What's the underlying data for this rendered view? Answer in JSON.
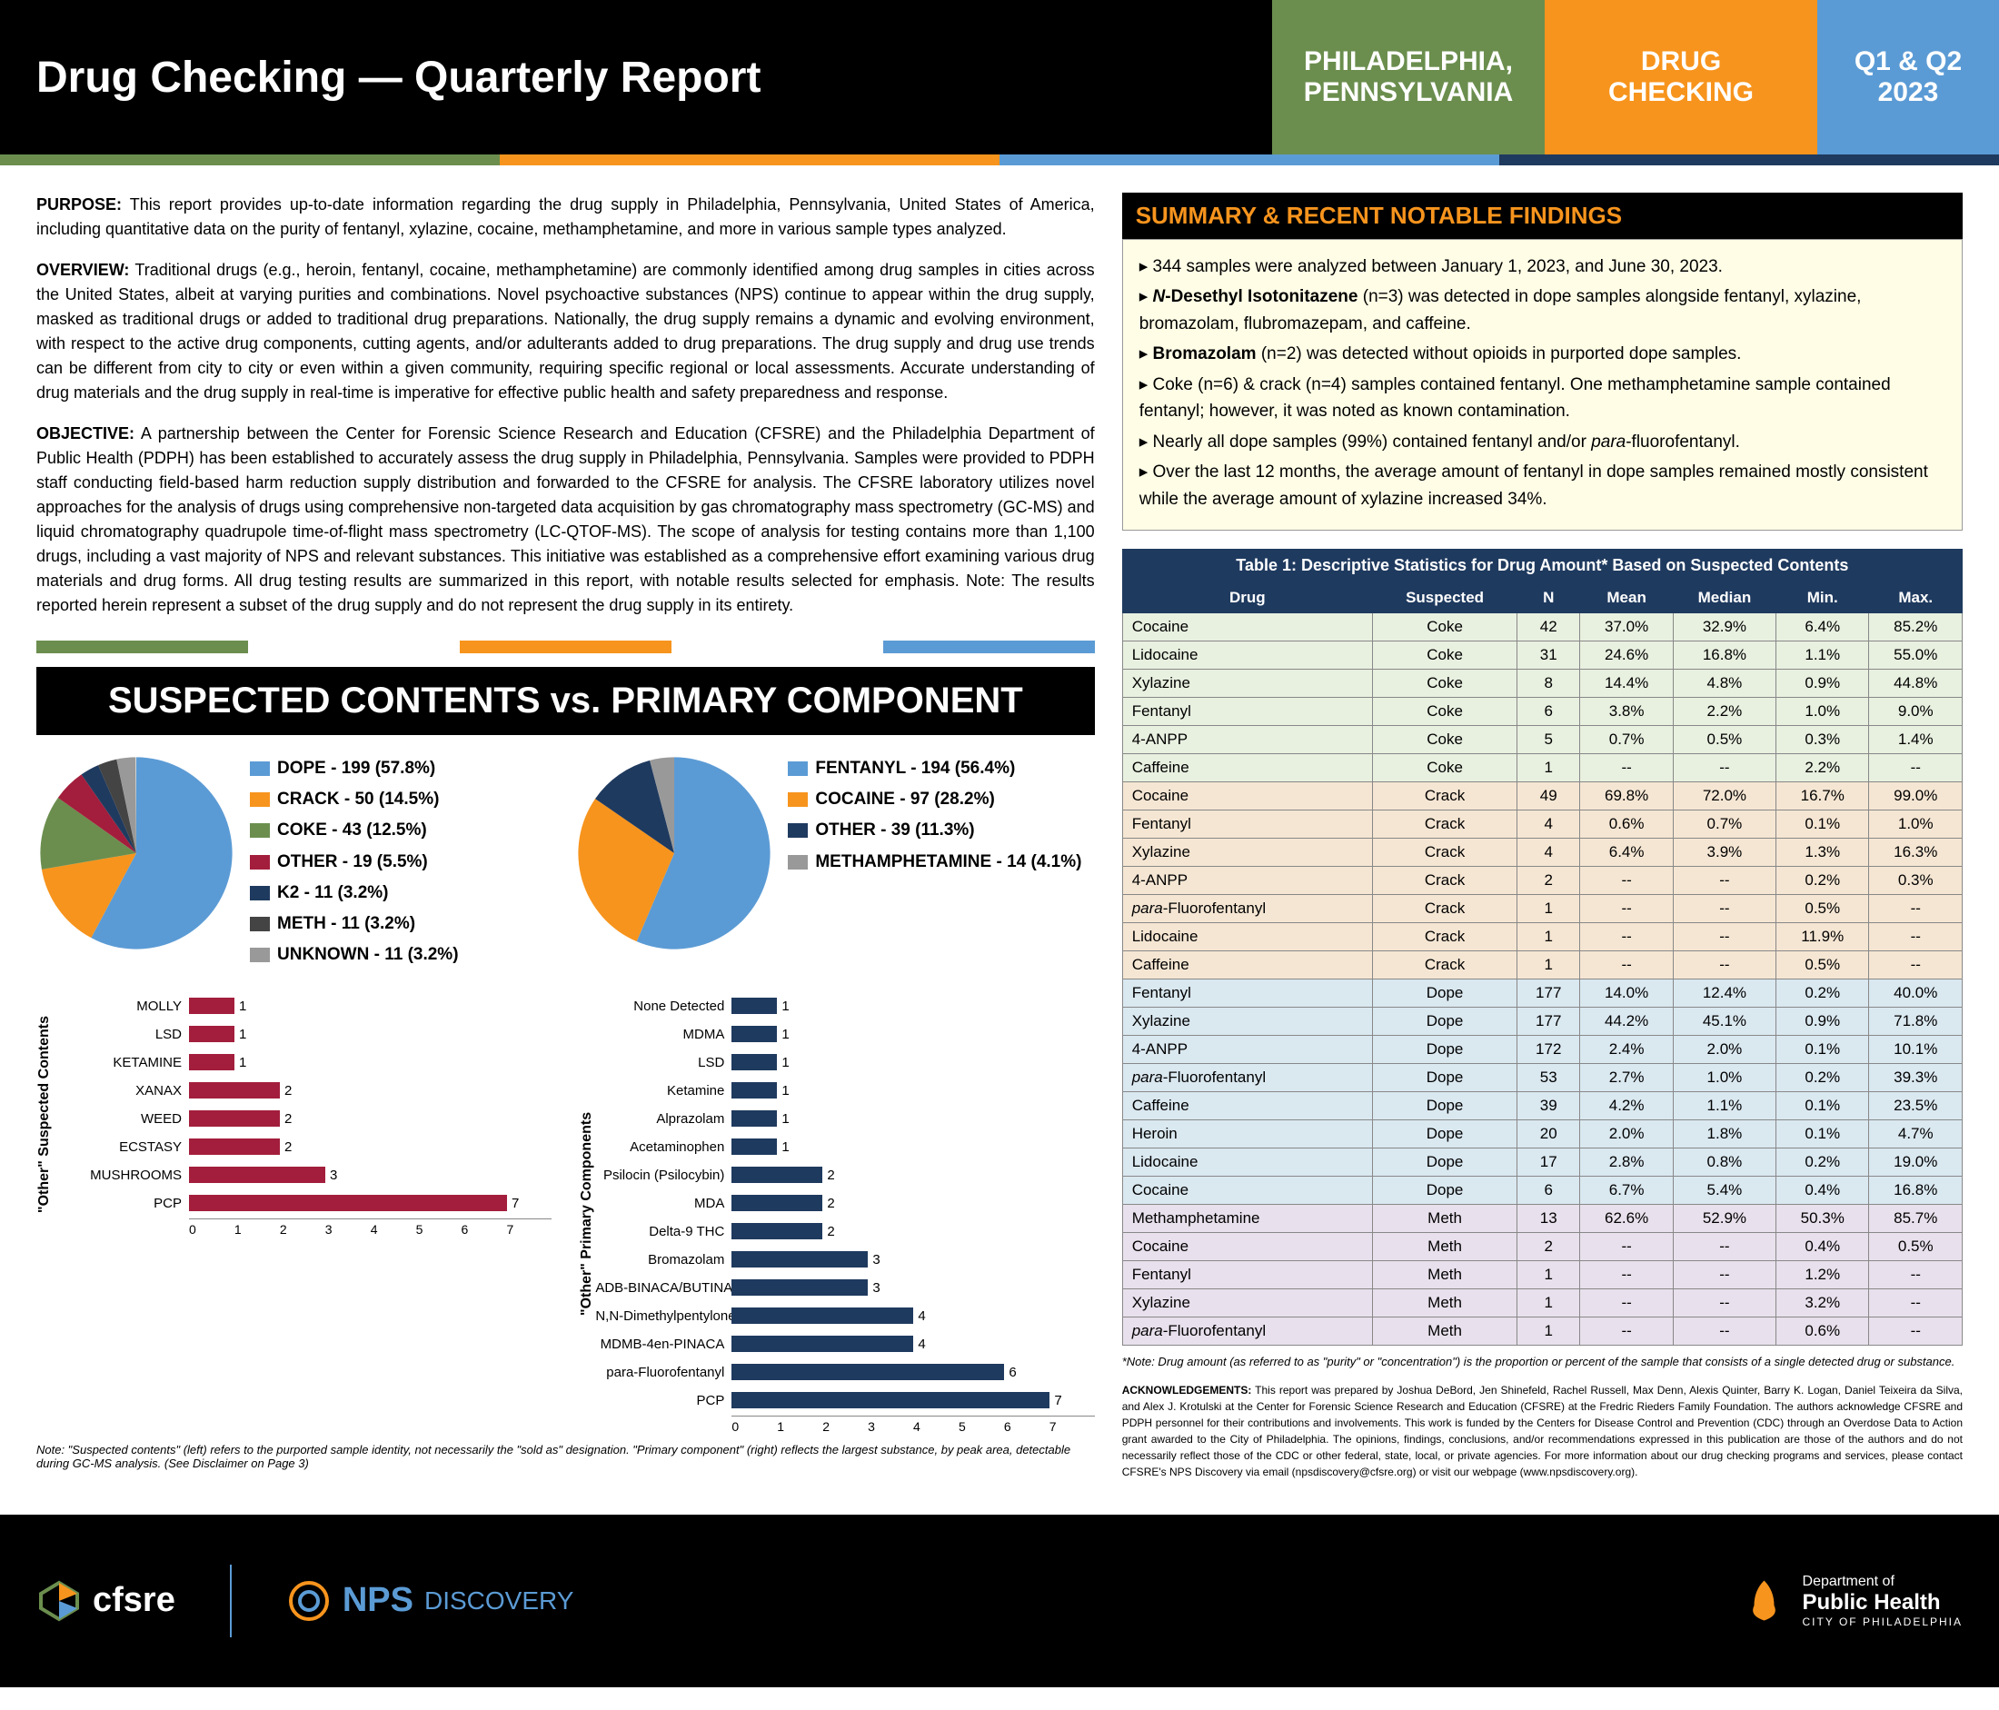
{
  "header": {
    "title": "Drug Checking — Quarterly Report",
    "loc1": "PHILADELPHIA,",
    "loc2": "PENNSYLVANIA",
    "mid1": "DRUG",
    "mid2": "CHECKING",
    "period1": "Q1 & Q2",
    "period2": "2023"
  },
  "purpose_label": "PURPOSE:",
  "purpose": " This report provides up-to-date information regarding the drug supply in Philadelphia, Pennsylvania, United States of America, including quantitative data on the purity of fentanyl, xylazine, cocaine, methamphetamine, and more in various sample types analyzed.",
  "overview_label": "OVERVIEW:",
  "overview": " Traditional drugs (e.g., heroin, fentanyl, cocaine, methamphetamine) are commonly identified among drug samples in cities across the United States, albeit at varying purities and combinations. Novel psychoactive substances (NPS) continue to appear within the drug supply, masked as traditional drugs or added to traditional drug preparations. Nationally, the drug supply remains a dynamic and evolving environment, with respect to the active drug components, cutting agents, and/or adulterants added to drug preparations. The drug supply and drug use trends can be different from city to city or even within a given community, requiring specific regional or local assessments. Accurate understanding of drug materials and the drug supply in real-time is imperative for effective public health and safety preparedness and response.",
  "objective_label": "OBJECTIVE:",
  "objective": " A partnership between the Center for Forensic Science Research and Education (CFSRE) and the Philadelphia Department of Public Health (PDPH) has been established to accurately assess the drug supply in Philadelphia, Pennsylvania. Samples were provided to PDPH staff conducting field-based harm reduction supply distribution and forwarded to the CFSRE for analysis. The CFSRE laboratory utilizes novel approaches for the analysis of drugs using comprehensive non-targeted data acquisition by gas chromatography mass spectrometry (GC-MS) and liquid chromatography quadrupole time-of-flight mass spectrometry (LC-QTOF-MS). The scope of analysis for testing contains more than 1,100 drugs, including a vast majority of NPS and relevant substances. This initiative was established as a comprehensive effort examining various drug materials and drug forms. All drug testing results are summarized in this report, with notable results selected for emphasis. Note: The results reported herein represent a subset of the drug supply and do not represent the drug supply in its entirety.",
  "chart_title": "SUSPECTED CONTENTS vs. PRIMARY COMPONENT",
  "pie1": {
    "slices": [
      {
        "label": "DOPE - 199 (57.8%)",
        "pct": 57.8,
        "color": "#5b9bd5"
      },
      {
        "label": "CRACK - 50 (14.5%)",
        "pct": 14.5,
        "color": "#f7941d"
      },
      {
        "label": "COKE - 43 (12.5%)",
        "pct": 12.5,
        "color": "#6b8e4e"
      },
      {
        "label": "OTHER - 19 (5.5%)",
        "pct": 5.5,
        "color": "#a31e3c"
      },
      {
        "label": "K2 - 11 (3.2%)",
        "pct": 3.2,
        "color": "#1f3a5f"
      },
      {
        "label": "METH - 11 (3.2%)",
        "pct": 3.2,
        "color": "#444444"
      },
      {
        "label": "UNKNOWN - 11 (3.2%)",
        "pct": 3.2,
        "color": "#999999"
      }
    ]
  },
  "pie2": {
    "slices": [
      {
        "label": "FENTANYL - 194 (56.4%)",
        "pct": 56.4,
        "color": "#5b9bd5"
      },
      {
        "label": "COCAINE - 97 (28.2%)",
        "pct": 28.2,
        "color": "#f7941d"
      },
      {
        "label": "OTHER - 39 (11.3%)",
        "pct": 11.3,
        "color": "#1f3a5f"
      },
      {
        "label": "METHAMPHETAMINE - 14 (4.1%)",
        "pct": 4.1,
        "color": "#999999"
      }
    ]
  },
  "bar1": {
    "ylabel": "\"Other\" Suspected Contents",
    "color": "#a31e3c",
    "max": 7,
    "items": [
      {
        "label": "MOLLY",
        "v": 1
      },
      {
        "label": "LSD",
        "v": 1
      },
      {
        "label": "KETAMINE",
        "v": 1
      },
      {
        "label": "XANAX",
        "v": 2
      },
      {
        "label": "WEED",
        "v": 2
      },
      {
        "label": "ECSTASY",
        "v": 2
      },
      {
        "label": "MUSHROOMS",
        "v": 3
      },
      {
        "label": "PCP",
        "v": 7
      }
    ],
    "ticks": [
      "0",
      "1",
      "2",
      "3",
      "4",
      "5",
      "6",
      "7"
    ]
  },
  "bar2": {
    "ylabel": "\"Other\" Primary Components",
    "color": "#1f3a5f",
    "max": 7,
    "items": [
      {
        "label": "None Detected",
        "v": 1
      },
      {
        "label": "MDMA",
        "v": 1
      },
      {
        "label": "LSD",
        "v": 1
      },
      {
        "label": "Ketamine",
        "v": 1
      },
      {
        "label": "Alprazolam",
        "v": 1
      },
      {
        "label": "Acetaminophen",
        "v": 1
      },
      {
        "label": "Psilocin (Psilocybin)",
        "v": 2
      },
      {
        "label": "MDA",
        "v": 2
      },
      {
        "label": "Delta-9 THC",
        "v": 2
      },
      {
        "label": "Bromazolam",
        "v": 3
      },
      {
        "label": "ADB-BINACA/BUTINACA",
        "v": 3
      },
      {
        "label": "N,N-Dimethylpentylone",
        "v": 4
      },
      {
        "label": "MDMB-4en-PINACA",
        "v": 4
      },
      {
        "label": "para-Fluorofentanyl",
        "v": 6
      },
      {
        "label": "PCP",
        "v": 7
      }
    ],
    "ticks": [
      "0",
      "1",
      "2",
      "3",
      "4",
      "5",
      "6",
      "7"
    ]
  },
  "chart_note": "Note: \"Suspected contents\" (left) refers to the purported sample identity, not necessarily the \"sold as\" designation. \"Primary component\" (right) reflects the largest substance, by peak area, detectable during GC-MS analysis. (See Disclaimer on Page 3)",
  "summary_header": "SUMMARY & RECENT NOTABLE FINDINGS",
  "summary": [
    "344 samples were analyzed between January 1, 2023, and June 30, 2023.",
    "<b><i>N</i>-Desethyl Isotonitazene</b> (n=3) was detected in dope samples alongside fentanyl, xylazine, bromazolam, flubromazepam, and caffeine.",
    "<b>Bromazolam</b> (n=2) was detected without opioids in purported dope samples.",
    "Coke (n=6) & crack (n=4) samples contained fentanyl. One methamphetamine sample contained fentanyl; however, it was noted as known contamination.",
    "Nearly all dope samples (99%) contained fentanyl and/or <i>para</i>-fluorofentanyl.",
    "Over the last 12 months, the average amount of fentanyl in dope samples remained mostly consistent while the average amount of xylazine increased 34%."
  ],
  "table": {
    "title": "Table 1: Descriptive Statistics for Drug Amount* Based on Suspected Contents",
    "headers": [
      "Drug",
      "Suspected",
      "N",
      "Mean",
      "Median",
      "Min.",
      "Max."
    ],
    "rows": [
      {
        "g": "gcoke",
        "c": [
          "Cocaine",
          "Coke",
          "42",
          "37.0%",
          "32.9%",
          "6.4%",
          "85.2%"
        ]
      },
      {
        "g": "gcoke",
        "c": [
          "Lidocaine",
          "Coke",
          "31",
          "24.6%",
          "16.8%",
          "1.1%",
          "55.0%"
        ]
      },
      {
        "g": "gcoke",
        "c": [
          "Xylazine",
          "Coke",
          "8",
          "14.4%",
          "4.8%",
          "0.9%",
          "44.8%"
        ]
      },
      {
        "g": "gcoke",
        "c": [
          "Fentanyl",
          "Coke",
          "6",
          "3.8%",
          "2.2%",
          "1.0%",
          "9.0%"
        ]
      },
      {
        "g": "gcoke",
        "c": [
          "4-ANPP",
          "Coke",
          "5",
          "0.7%",
          "0.5%",
          "0.3%",
          "1.4%"
        ]
      },
      {
        "g": "gcoke",
        "c": [
          "Caffeine",
          "Coke",
          "1",
          "--",
          "--",
          "2.2%",
          "--"
        ]
      },
      {
        "g": "gcrack",
        "c": [
          "Cocaine",
          "Crack",
          "49",
          "69.8%",
          "72.0%",
          "16.7%",
          "99.0%"
        ]
      },
      {
        "g": "gcrack",
        "c": [
          "Fentanyl",
          "Crack",
          "4",
          "0.6%",
          "0.7%",
          "0.1%",
          "1.0%"
        ]
      },
      {
        "g": "gcrack",
        "c": [
          "Xylazine",
          "Crack",
          "4",
          "6.4%",
          "3.9%",
          "1.3%",
          "16.3%"
        ]
      },
      {
        "g": "gcrack",
        "c": [
          "4-ANPP",
          "Crack",
          "2",
          "--",
          "--",
          "0.2%",
          "0.3%"
        ]
      },
      {
        "g": "gcrack",
        "c": [
          "<i>para</i>-Fluorofentanyl",
          "Crack",
          "1",
          "--",
          "--",
          "0.5%",
          "--"
        ]
      },
      {
        "g": "gcrack",
        "c": [
          "Lidocaine",
          "Crack",
          "1",
          "--",
          "--",
          "11.9%",
          "--"
        ]
      },
      {
        "g": "gcrack",
        "c": [
          "Caffeine",
          "Crack",
          "1",
          "--",
          "--",
          "0.5%",
          "--"
        ]
      },
      {
        "g": "gdope",
        "c": [
          "Fentanyl",
          "Dope",
          "177",
          "14.0%",
          "12.4%",
          "0.2%",
          "40.0%"
        ]
      },
      {
        "g": "gdope",
        "c": [
          "Xylazine",
          "Dope",
          "177",
          "44.2%",
          "45.1%",
          "0.9%",
          "71.8%"
        ]
      },
      {
        "g": "gdope",
        "c": [
          "4-ANPP",
          "Dope",
          "172",
          "2.4%",
          "2.0%",
          "0.1%",
          "10.1%"
        ]
      },
      {
        "g": "gdope",
        "c": [
          "<i>para</i>-Fluorofentanyl",
          "Dope",
          "53",
          "2.7%",
          "1.0%",
          "0.2%",
          "39.3%"
        ]
      },
      {
        "g": "gdope",
        "c": [
          "Caffeine",
          "Dope",
          "39",
          "4.2%",
          "1.1%",
          "0.1%",
          "23.5%"
        ]
      },
      {
        "g": "gdope",
        "c": [
          "Heroin",
          "Dope",
          "20",
          "2.0%",
          "1.8%",
          "0.1%",
          "4.7%"
        ]
      },
      {
        "g": "gdope",
        "c": [
          "Lidocaine",
          "Dope",
          "17",
          "2.8%",
          "0.8%",
          "0.2%",
          "19.0%"
        ]
      },
      {
        "g": "gdope",
        "c": [
          "Cocaine",
          "Dope",
          "6",
          "6.7%",
          "5.4%",
          "0.4%",
          "16.8%"
        ]
      },
      {
        "g": "gmeth",
        "c": [
          "Methamphetamine",
          "Meth",
          "13",
          "62.6%",
          "52.9%",
          "50.3%",
          "85.7%"
        ]
      },
      {
        "g": "gmeth",
        "c": [
          "Cocaine",
          "Meth",
          "2",
          "--",
          "--",
          "0.4%",
          "0.5%"
        ]
      },
      {
        "g": "gmeth",
        "c": [
          "Fentanyl",
          "Meth",
          "1",
          "--",
          "--",
          "1.2%",
          "--"
        ]
      },
      {
        "g": "gmeth",
        "c": [
          "Xylazine",
          "Meth",
          "1",
          "--",
          "--",
          "3.2%",
          "--"
        ]
      },
      {
        "g": "gmeth",
        "c": [
          "<i>para</i>-Fluorofentanyl",
          "Meth",
          "1",
          "--",
          "--",
          "0.6%",
          "--"
        ]
      }
    ],
    "note": "*Note: Drug amount (as referred to as \"purity\" or \"concentration\") is the proportion or percent of the sample that consists of a single detected drug or substance."
  },
  "ack_label": "ACKNOWLEDGEMENTS:",
  "ack": " This report was prepared by Joshua DeBord, Jen Shinefeld, Rachel Russell, Max Denn, Alexis Quinter, Barry K. Logan, Daniel Teixeira da Silva, and Alex J. Krotulski at the Center for Forensic Science Research and Education (CFSRE) at the Fredric Rieders Family Foundation. The authors acknowledge CFSRE and PDPH personnel for their contributions and involvements. This work is funded by the Centers for Disease Control and Prevention (CDC) through an Overdose Data to Action grant awarded to the City of Philadelphia. The opinions, findings, conclusions, and/or recommendations expressed in this publication are those of the authors and do not necessarily reflect those of the CDC or other federal, state, local, or private agencies. For more information about our drug checking programs and services, please contact CFSRE's NPS Discovery via email (npsdiscovery@cfsre.org) or visit our webpage (www.npsdiscovery.org).",
  "footer": {
    "logo1": "cfsre",
    "logo2a": "NPS",
    "logo2b": " DISCOVERY",
    "dept1": "Department of",
    "dept2": "Public Health",
    "dept3": "CITY OF PHILADELPHIA"
  }
}
